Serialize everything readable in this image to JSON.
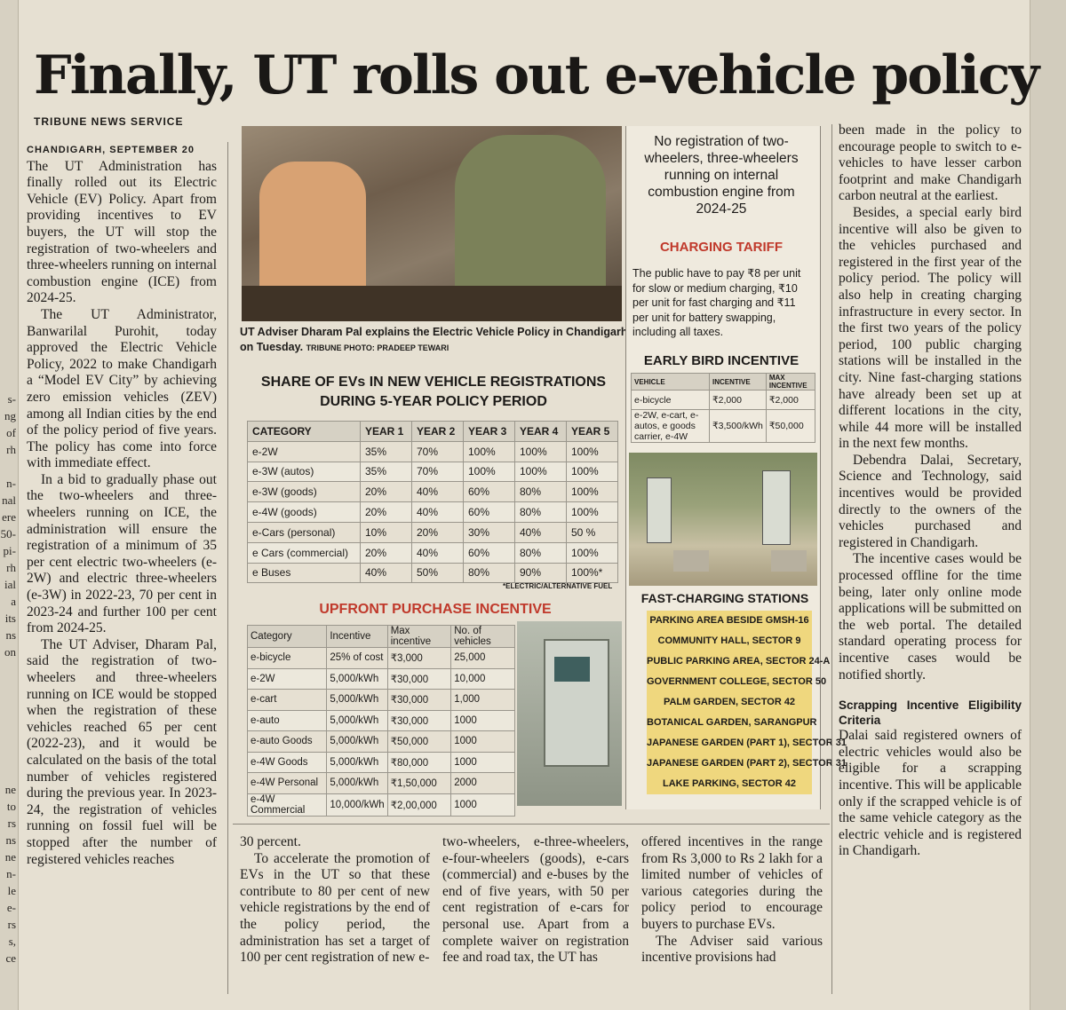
{
  "headline": "Finally, UT rolls out e-vehicle policy",
  "byline": "TRIBUNE NEWS SERVICE",
  "dateline": "CHANDIGARH, SEPTEMBER 20",
  "col1": {
    "p1": "The UT Administration has finally rolled out its Electric Vehicle (EV) Policy. Apart from providing incentives to EV buyers, the UT will stop the registration of two-wheelers and three-wheelers running on internal combustion engine (ICE) from 2024-25.",
    "p2": "The UT Administrator, Banwarilal Purohit, today approved the Electric Vehicle Policy, 2022 to make Chandigarh a “Model EV City” by achieving zero emission vehicles (ZEV) among all Indian cities by the end of the policy period of five years. The policy has come into force with immediate effect.",
    "p3": "In a bid to gradually phase out the two-wheelers and three-wheelers running on ICE, the administration will ensure the registration of a minimum of 35 per cent electric two-wheelers (e-2W) and electric three-wheelers (e-3W) in 2022-23, 70 per cent in 2023-24 and further 100 per cent from 2024-25.",
    "p4": "The UT Adviser, Dharam Pal, said the registration of two-wheelers and three-wheelers running on ICE would be stopped when the registration of these vehicles reached 65 per cent (2022-23), and it would be calculated on the basis of the total number of vehicles registered during the previous year. In 2023-24, the registration of vehicles running on fossil fuel will be stopped after the number of registered vehicles reaches"
  },
  "col2": {
    "p1": "30 percent.",
    "p2": "To accelerate the promotion of EVs in the UT so that these contribute to 80 per cent of new vehicle registrations by the end of the policy period, the administration has set a target of 100 per cent registration of new e-"
  },
  "col3": {
    "p1": "two-wheelers, e-three-wheelers, e-four-wheelers (goods), e-cars (commercial) and e-buses by the end of five years, with 50 per cent registration of e-cars for personal use. Apart from a complete waiver on registration fee and road tax, the UT has"
  },
  "col4": {
    "p1": "offered incentives in the range from Rs 3,000 to Rs 2 lakh for a limited number of vehicles of various categories during the policy period to encourage buyers to purchase EVs.",
    "p2": "The Adviser said various incentive provisions had"
  },
  "col5": {
    "p1": "been made in the policy to encourage people to switch to e-vehicles to have lesser carbon footprint and make Chandigarh carbon neutral at the earliest.",
    "p2": "Besides, a special early bird incentive will also be given to the vehicles purchased and registered in the first year of the policy period. The policy will also help in creating charging infrastructure in every sector. In the first two years of the policy period, 100 public charging stations will be installed in the city. Nine fast-charging stations have already been set up at different locations in the city, while 44 more will be installed in the next few months.",
    "p3": "Debendra Dalai, Secretary, Science and Technology, said incentives would be provided directly to the owners of the vehicles purchased and registered in Chandigarh.",
    "p4": "The incentive cases would be processed offline for the time being, later only online mode applications will be submitted on the web portal. The detailed standard operating process for incentive cases would be notified shortly.",
    "subhead": "Scrapping Incentive Eligibility Criteria",
    "p5": "Dalai said registered owners of electric vehicles would also be eligible for a scrapping incentive. This will be applicable only if the scrapped vehicle is of the same vehicle category as the electric vehicle and is registered in Chandigarh."
  },
  "photo_caption": "UT Adviser Dharam Pal explains the Electric Vehicle Policy in Chandigarh on Tuesday.",
  "photo_credit": "TRIBUNE PHOTO: PRADEEP TEWARI",
  "share_table": {
    "title": "SHARE OF EVs IN NEW VEHICLE REGISTRATIONS DURING 5-YEAR POLICY PERIOD",
    "headers": [
      "CATEGORY",
      "YEAR 1",
      "YEAR 2",
      "YEAR 3",
      "YEAR 4",
      "YEAR 5"
    ],
    "rows": [
      [
        "e-2W",
        "35%",
        "70%",
        "100%",
        "100%",
        "100%"
      ],
      [
        "e-3W (autos)",
        "35%",
        "70%",
        "100%",
        "100%",
        "100%"
      ],
      [
        "e-3W (goods)",
        "20%",
        "40%",
        "60%",
        "80%",
        "100%"
      ],
      [
        "e-4W (goods)",
        "20%",
        "40%",
        "60%",
        "80%",
        "100%"
      ],
      [
        "e-Cars (personal)",
        "10%",
        "20%",
        "30%",
        "40%",
        "50 %"
      ],
      [
        "e Cars (commercial)",
        "20%",
        "40%",
        "60%",
        "80%",
        "100%"
      ],
      [
        "e Buses",
        "40%",
        "50%",
        "80%",
        "90%",
        "100%*"
      ]
    ],
    "footnote": "*ELECTRIC/ALTERNATIVE FUEL"
  },
  "upfront_table": {
    "title": "UPFRONT PURCHASE INCENTIVE",
    "headers": [
      "Category",
      "Incentive",
      "Max incentive",
      "No. of vehicles"
    ],
    "rows": [
      [
        "e-bicycle",
        "25% of cost",
        "₹3,000",
        "25,000"
      ],
      [
        "e-2W",
        "5,000/kWh",
        "₹30,000",
        "10,000"
      ],
      [
        "e-cart",
        "5,000/kWh",
        "₹30,000",
        "1,000"
      ],
      [
        "e-auto",
        "5,000/kWh",
        "₹30,000",
        "1000"
      ],
      [
        "e-auto Goods",
        "5,000/kWh",
        "₹50,000",
        "1000"
      ],
      [
        "e-4W Goods",
        "5,000/kWh",
        "₹80,000",
        "1000"
      ],
      [
        "e-4W Personal",
        "5,000/kWh",
        "₹1,50,000",
        "2000"
      ],
      [
        "e-4W Commercial",
        "10,000/kWh",
        "₹2,00,000",
        "1000"
      ]
    ]
  },
  "sidebar": {
    "headline": "No registration of two-wheelers, three-wheelers running on internal combustion engine from 2024-25",
    "tariff_title": "CHARGING TARIFF",
    "tariff_text": "The public have to pay ₹8 per unit for slow or medium charging, ₹10 per unit for fast charging and ₹11 per unit for battery swapping, including all taxes.",
    "early_bird_title": "EARLY BIRD INCENTIVE",
    "early_bird_headers": [
      "VEHICLE",
      "INCENTIVE",
      "MAX INCENTIVE"
    ],
    "early_bird_rows": [
      [
        "e-bicycle",
        "₹2,000",
        "₹2,000"
      ],
      [
        "e-2W, e-cart, e-autos, e goods carrier, e-4W",
        "₹3,500/kWh",
        "₹50,000"
      ]
    ],
    "stations_title": "FAST-CHARGING STATIONS",
    "stations": [
      "PARKING AREA BESIDE GMSH-16",
      "COMMUNITY HALL, SECTOR 9",
      "PUBLIC PARKING AREA, SECTOR 24-A",
      "GOVERNMENT COLLEGE, SECTOR 50",
      "PALM GARDEN, SECTOR 42",
      "BOTANICAL GARDEN, SARANGPUR",
      "JAPANESE GARDEN (PART 1), SECTOR 31",
      "JAPANESE GARDEN (PART 2), SECTOR 31",
      "LAKE PARKING, SECTOR 42"
    ]
  },
  "left_stub": [
    "s-",
    "ng",
    "of",
    "rh",
    "",
    "n-",
    "nal",
    "ere",
    "50-",
    "pi-",
    "rh",
    "ial",
    "a",
    "its",
    "ns",
    "on"
  ],
  "left_stub2": [
    "ne",
    "to",
    "rs",
    "ns",
    "ne",
    "n-",
    "le",
    "e-",
    "rs",
    "s,",
    "ce"
  ],
  "colors": {
    "paper": "#e6e0d2",
    "accent_red": "#c0392b",
    "highlight": "#efd77e"
  }
}
